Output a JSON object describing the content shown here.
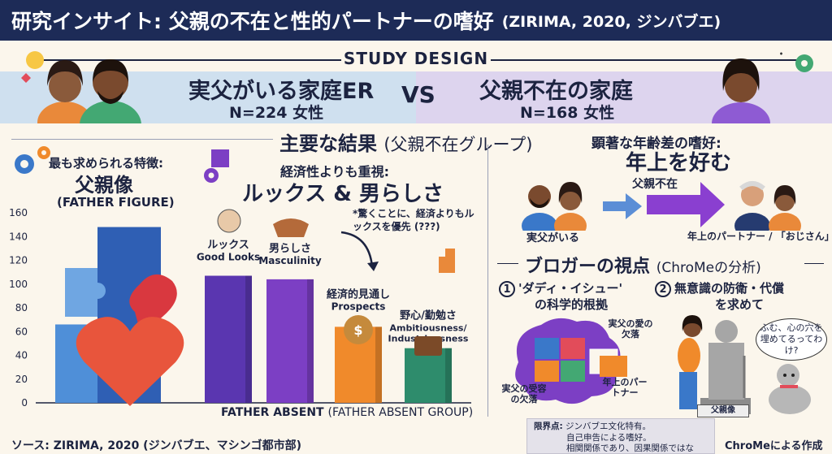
{
  "title": {
    "main": "研究インサイト: 父親の不在と性的パートナーの嗜好",
    "cite": "(ZIRIMA, 2020, ジンバブエ)"
  },
  "study_design": {
    "label": "STUDY DESIGN",
    "vs": "VS",
    "group_left": {
      "title": "実父がいる家庭ER",
      "n": "N=224 女性"
    },
    "group_right": {
      "title": "父親不在の家庭",
      "n": "N=168 女性"
    }
  },
  "results": {
    "heading": "主要な結果",
    "heading_paren": "(父親不在グループ)",
    "father_figure": {
      "line1": "最も求められる特徴:",
      "line2": "父親像",
      "line3": "(FATHER FIGURE)"
    },
    "looks_heading": {
      "line1": "経済性よりも重視:",
      "line2": "ルックス & 男らしさ"
    },
    "surprise_note": "*驚くことに、経済よりもルックスを優先 (???)",
    "bars": [
      {
        "jp": "ルックス",
        "en": "Good Looks",
        "value": 107,
        "color": "#5a36b0"
      },
      {
        "jp": "男らしさ",
        "en": "Masculinity",
        "value": 104,
        "color": "#7c3fc4"
      },
      {
        "jp": "経済的見通し",
        "en": "Prospects",
        "value": 64,
        "color": "#f08a2b"
      },
      {
        "jp": "野心/勤勉さ",
        "en": "Ambitiousness/ Industriousness",
        "value": 46,
        "color": "#2e8c6c"
      }
    ],
    "father_figure_value": 148,
    "x_label": "FATHER ABSENT",
    "x_label_paren": "(FATHER ABSENT GROUP)",
    "y_ticks": [
      "160",
      "140",
      "120",
      "100",
      "80",
      "60",
      "40",
      "20",
      "0"
    ]
  },
  "age_pref": {
    "heading1": "顕著な年齢差の嗜好:",
    "heading2": "年上を好む",
    "left_label": "実父がいる",
    "arrow_label": "父親不在",
    "right_label": "年上のパートナー / 「おじさん」"
  },
  "blogger": {
    "heading": "ブロガーの視点",
    "heading_paren": "(ChroMeの分析)",
    "point1": {
      "num": "①",
      "line1": "'ダディ・イシュー'",
      "line2": "の科学的根拠"
    },
    "point2": {
      "num": "②",
      "line1": "無意識の防衛・代償",
      "line2": "を求めて"
    },
    "brain_labels": [
      "実父の愛の欠落",
      "実父の受容の欠落",
      "年上のパートナー"
    ],
    "statue_label": "父親像",
    "bubble": "ふむ、心の穴を埋めてるってわけ?"
  },
  "footer": {
    "source": "ソース: ZIRIMA, 2020 (ジンバブエ、マシンゴ都市部)",
    "limits_title": "限界点:",
    "limits": [
      "ジンバブエ文化特有。",
      "自己申告による嗜好。",
      "相関関係であり、因果関係ではない。"
    ],
    "credit": "ChroMeによる作成"
  },
  "colors": {
    "navy": "#1d2b57",
    "blue_band": "#cfe0ef",
    "purple_band": "#ddd4ee"
  }
}
